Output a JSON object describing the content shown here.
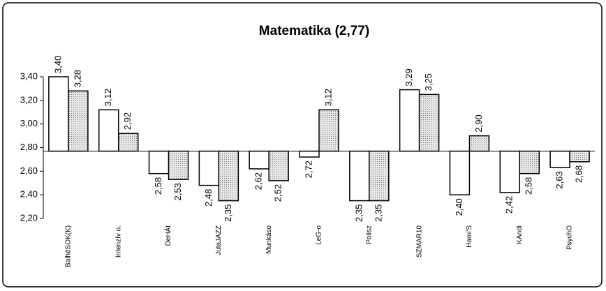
{
  "chart_data": {
    "type": "bar",
    "title": "Matematika (2,77)",
    "baseline": 2.77,
    "categories": [
      "BalhéSOK(K)",
      "Intenzív o.",
      "DeHÁt",
      "JutaJAZZ",
      "Munkáso",
      "LeG-o",
      "Polisz",
      "SZMAR10",
      "Hami'S",
      "KAndi",
      "PsychO"
    ],
    "series": [
      {
        "color": "#ffffff",
        "values": [
          3.4,
          3.12,
          2.58,
          2.48,
          2.62,
          2.72,
          2.35,
          3.29,
          2.4,
          2.42,
          2.63
        ],
        "value_labels": [
          "3,40",
          "3,12",
          "2,58",
          "2,48",
          "2,62",
          "2,72",
          "2,35",
          "3,29",
          "2,40",
          "2,42",
          "2,63"
        ]
      },
      {
        "color": "#cfcfcf",
        "values": [
          3.28,
          2.92,
          2.53,
          2.35,
          2.52,
          3.12,
          2.35,
          3.25,
          2.9,
          2.58,
          2.68
        ],
        "value_labels": [
          "3,28",
          "2,92",
          "2,53",
          "2,35",
          "2,52",
          "3,12",
          "2,35",
          "3,25",
          "2,90",
          "2,58",
          "2,68"
        ]
      }
    ],
    "ylim": [
      2.2,
      3.4
    ],
    "yticks": [
      {
        "value": 2.2,
        "label": "2,20"
      },
      {
        "value": 2.4,
        "label": "2,40"
      },
      {
        "value": 2.6,
        "label": "2,60"
      },
      {
        "value": 2.8,
        "label": "2,80"
      },
      {
        "value": 3.0,
        "label": "3,00"
      },
      {
        "value": 3.2,
        "label": "3,20"
      },
      {
        "value": 3.4,
        "label": "3,40"
      }
    ],
    "grid": false
  }
}
